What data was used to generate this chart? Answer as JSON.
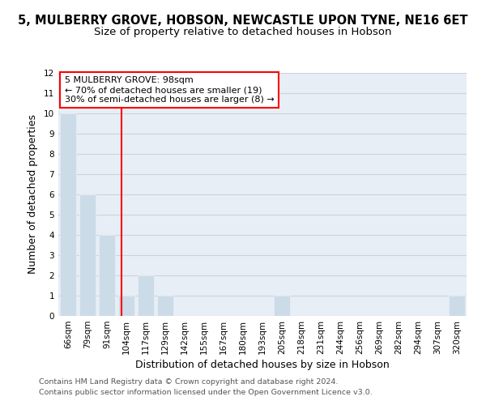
{
  "title": "5, MULBERRY GROVE, HOBSON, NEWCASTLE UPON TYNE, NE16 6ET",
  "subtitle": "Size of property relative to detached houses in Hobson",
  "xlabel": "Distribution of detached houses by size in Hobson",
  "ylabel": "Number of detached properties",
  "bins": [
    "66sqm",
    "79sqm",
    "91sqm",
    "104sqm",
    "117sqm",
    "129sqm",
    "142sqm",
    "155sqm",
    "167sqm",
    "180sqm",
    "193sqm",
    "205sqm",
    "218sqm",
    "231sqm",
    "244sqm",
    "256sqm",
    "269sqm",
    "282sqm",
    "294sqm",
    "307sqm",
    "320sqm"
  ],
  "values": [
    10,
    6,
    4,
    1,
    2,
    1,
    0,
    0,
    0,
    0,
    0,
    1,
    0,
    0,
    0,
    0,
    0,
    0,
    0,
    0,
    1
  ],
  "bar_color": "#ccdbe8",
  "red_line_x": 2.77,
  "red_box_text": "5 MULBERRY GROVE: 98sqm\n← 70% of detached houses are smaller (19)\n30% of semi-detached houses are larger (8) →",
  "ylim": [
    0,
    12
  ],
  "yticks": [
    0,
    1,
    2,
    3,
    4,
    5,
    6,
    7,
    8,
    9,
    10,
    11,
    12
  ],
  "footer_line1": "Contains HM Land Registry data © Crown copyright and database right 2024.",
  "footer_line2": "Contains public sector information licensed under the Open Government Licence v3.0.",
  "title_fontsize": 10.5,
  "subtitle_fontsize": 9.5,
  "axis_label_fontsize": 9,
  "tick_fontsize": 7.5,
  "footer_fontsize": 6.8,
  "bg_color": "#e8eef5",
  "grid_color": "#c8d4e0"
}
